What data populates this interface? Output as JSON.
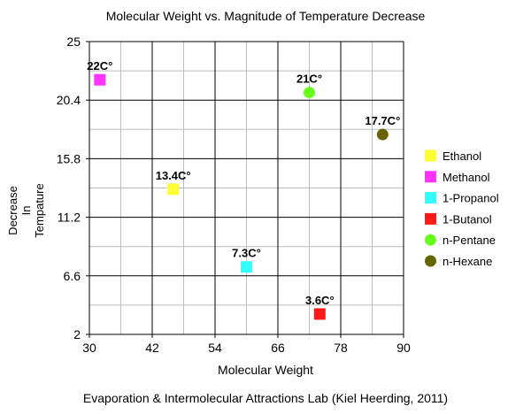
{
  "chart_data": {
    "type": "scatter",
    "title": "Molecular Weight vs. Magnitude of Temperature Decrease",
    "xlabel": "Molecular Weight",
    "ylabel_lines": [
      "Decrease",
      "In",
      "Tempature"
    ],
    "caption": "Evaporation & Intermolecular  Attractions Lab (Kiel Heerding, 2011)",
    "xlim": [
      30,
      90
    ],
    "ylim": [
      2,
      25
    ],
    "x_ticks": [
      30,
      42,
      54,
      66,
      78,
      90
    ],
    "x_tick_labels": [
      "30",
      "42",
      "54",
      "66",
      "78",
      "90"
    ],
    "y_ticks": [
      2,
      6.6,
      11.2,
      15.8,
      20.4,
      25
    ],
    "y_tick_labels": [
      "2",
      "6.6",
      "11.2",
      "15.8",
      "20.4",
      "25"
    ],
    "grid": true,
    "legend_position": "right",
    "series": [
      {
        "name": "Ethanol",
        "x": 46,
        "y": 13.4,
        "label": "13.4C°",
        "color": "#ffff33",
        "marker": "square"
      },
      {
        "name": "Methanol",
        "x": 32,
        "y": 22,
        "label": "22C°",
        "color": "#ff33ff",
        "marker": "square"
      },
      {
        "name": "1-Propanol",
        "x": 60,
        "y": 7.3,
        "label": "7.3C°",
        "color": "#33ffff",
        "marker": "square"
      },
      {
        "name": "1-Butanol",
        "x": 74,
        "y": 3.6,
        "label": "3.6C°",
        "color": "#ff1a1a",
        "marker": "square"
      },
      {
        "name": "n-Pentane",
        "x": 72,
        "y": 21,
        "label": "21C°",
        "color": "#66ff1a",
        "marker": "circle"
      },
      {
        "name": "n-Hexane",
        "x": 86,
        "y": 17.7,
        "label": "17.7C°",
        "color": "#666600",
        "marker": "circle"
      }
    ]
  }
}
